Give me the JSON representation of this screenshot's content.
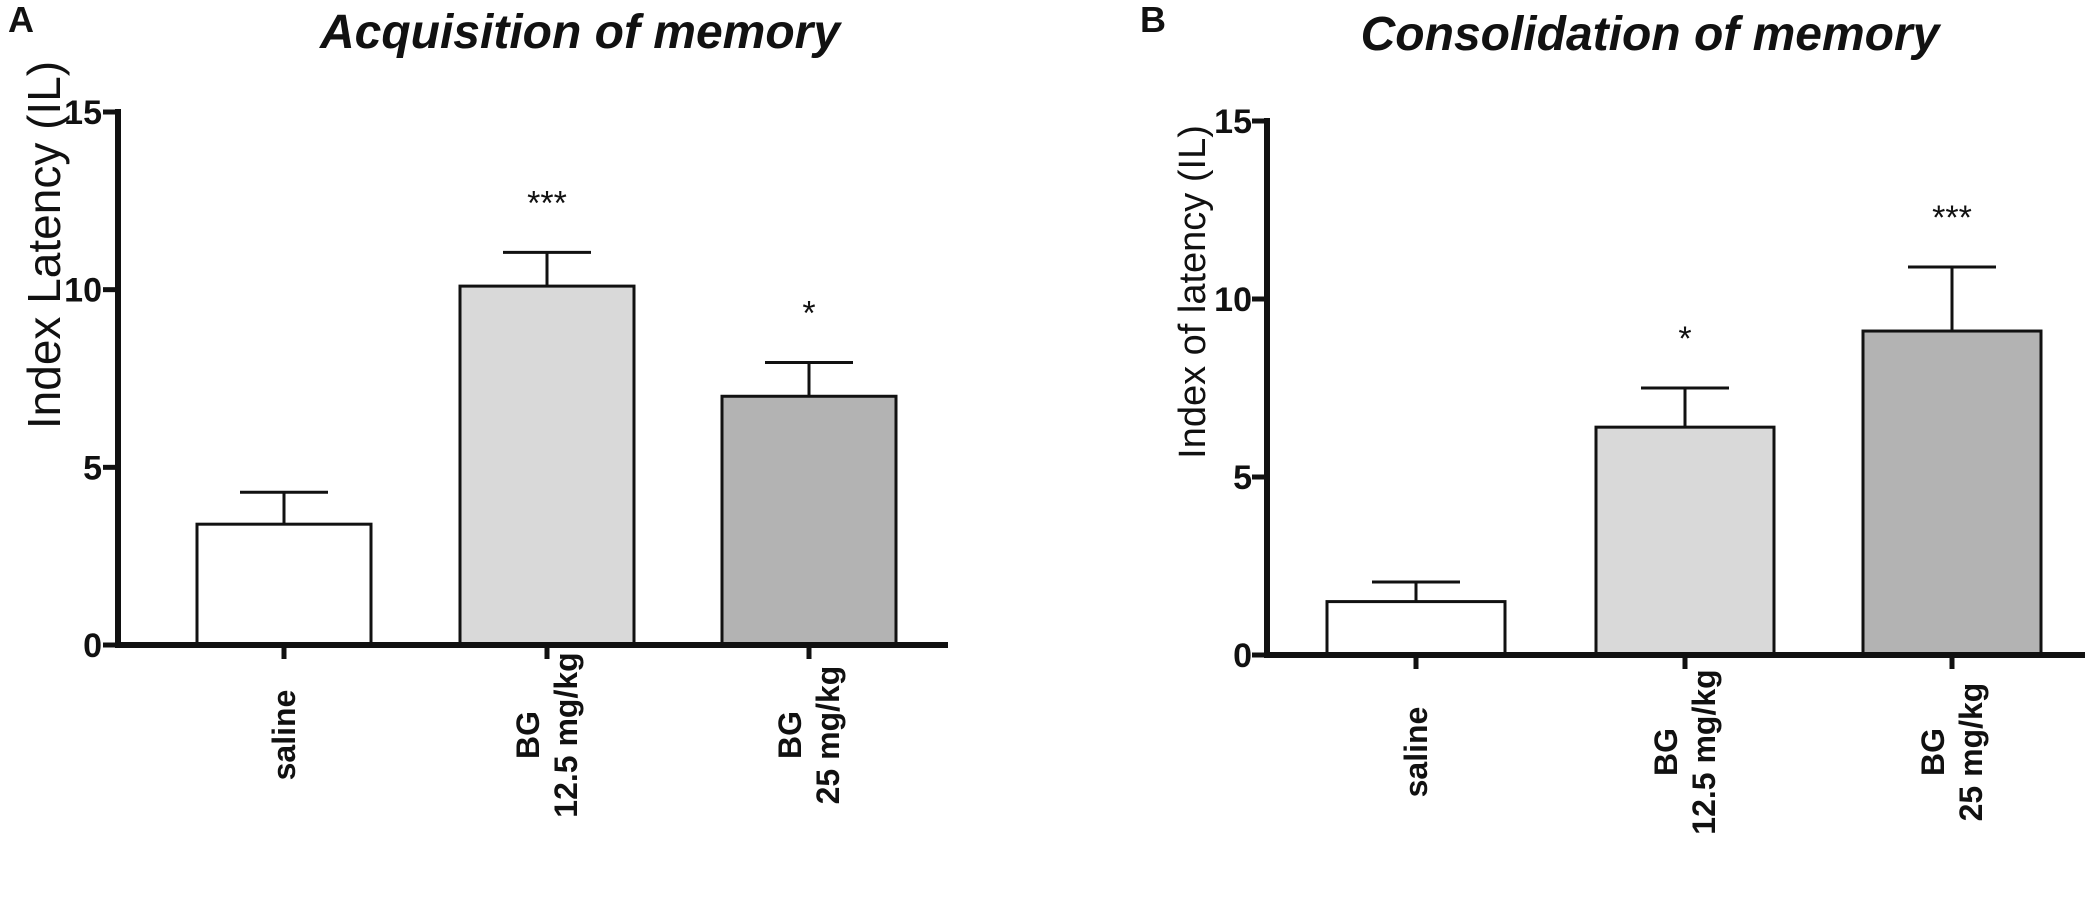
{
  "colors": {
    "saline": "#ffffff",
    "bg_12_5": "#d9d9d9",
    "bg_25": "#b3b3b3",
    "axis": "#111111"
  },
  "chart_data": [
    {
      "type": "bar",
      "panel": "A",
      "title": "Acquisition of memory",
      "xlabel": "",
      "ylabel": "Index Latency (IL)",
      "ylim": [
        0,
        15
      ],
      "yticks": [
        0,
        5,
        10,
        15
      ],
      "grid": false,
      "categories": [
        {
          "line1": "saline",
          "line2": ""
        },
        {
          "line1": "BG",
          "line2": "12.5 mg/kg"
        },
        {
          "line1": "BG",
          "line2": "25 mg/kg"
        }
      ],
      "values": [
        3.4,
        10.1,
        7.0
      ],
      "errors": [
        0.9,
        0.95,
        0.95
      ],
      "significance": [
        "",
        "***",
        "*"
      ],
      "bar_colors": [
        "#ffffff",
        "#d9d9d9",
        "#b3b3b3"
      ]
    },
    {
      "type": "bar",
      "panel": "B",
      "title": "Consolidation of memory",
      "xlabel": "",
      "ylabel": "Index of latency (IL)",
      "ylim": [
        0,
        15
      ],
      "yticks": [
        0,
        5,
        10,
        15
      ],
      "grid": false,
      "categories": [
        {
          "line1": "saline",
          "line2": ""
        },
        {
          "line1": "BG",
          "line2": "12.5 mg/kg"
        },
        {
          "line1": "BG",
          "line2": "25 mg/kg"
        }
      ],
      "values": [
        1.5,
        6.4,
        9.1
      ],
      "errors": [
        0.55,
        1.1,
        1.8
      ],
      "significance": [
        "",
        "*",
        "***"
      ],
      "bar_colors": [
        "#ffffff",
        "#d9d9d9",
        "#b3b3b3"
      ]
    }
  ]
}
